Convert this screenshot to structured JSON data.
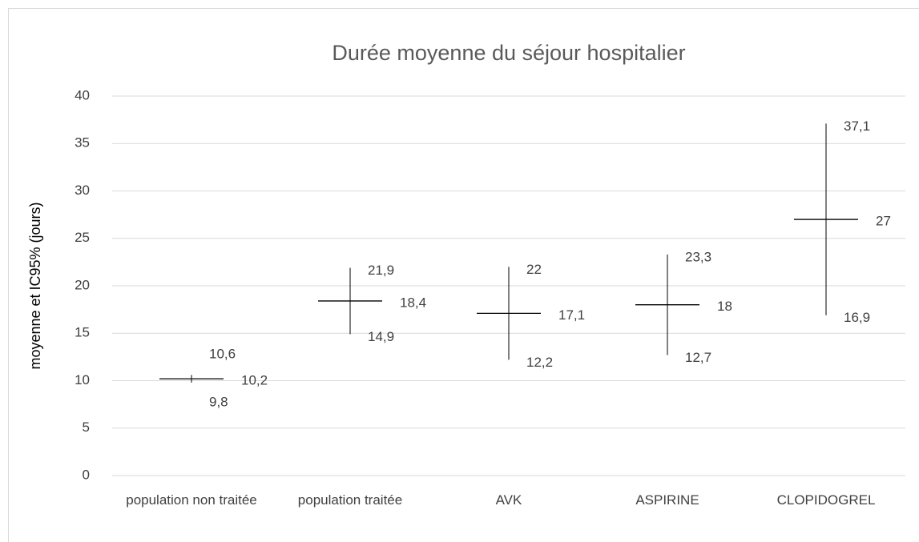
{
  "chart_data": {
    "type": "hilo",
    "title": "Durée moyenne du séjour hospitalier",
    "y_label": "moyenne et IC95% (jours)",
    "categories": [
      "population non traitée",
      "population traitée",
      "AVK",
      "ASPIRINE",
      "CLOPIDOGREL"
    ],
    "values": [
      10.2,
      18.4,
      17.1,
      18,
      27
    ],
    "value_labels": [
      "10,2",
      "18,4",
      "17,1",
      "18",
      "27"
    ],
    "upper": [
      10.6,
      21.9,
      22,
      23.3,
      37.1
    ],
    "upper_labels": [
      "10,6",
      "21,9",
      "22",
      "23,3",
      "37,1"
    ],
    "lower": [
      9.8,
      14.9,
      12.2,
      12.7,
      16.9
    ],
    "lower_labels": [
      "9,8",
      "14,9",
      "12,2",
      "12,7",
      "16,9"
    ],
    "color": "#000000",
    "ylim": [
      0,
      40
    ],
    "yticks": [
      0,
      5,
      10,
      15,
      20,
      25,
      30,
      35,
      40
    ],
    "grid": true
  }
}
